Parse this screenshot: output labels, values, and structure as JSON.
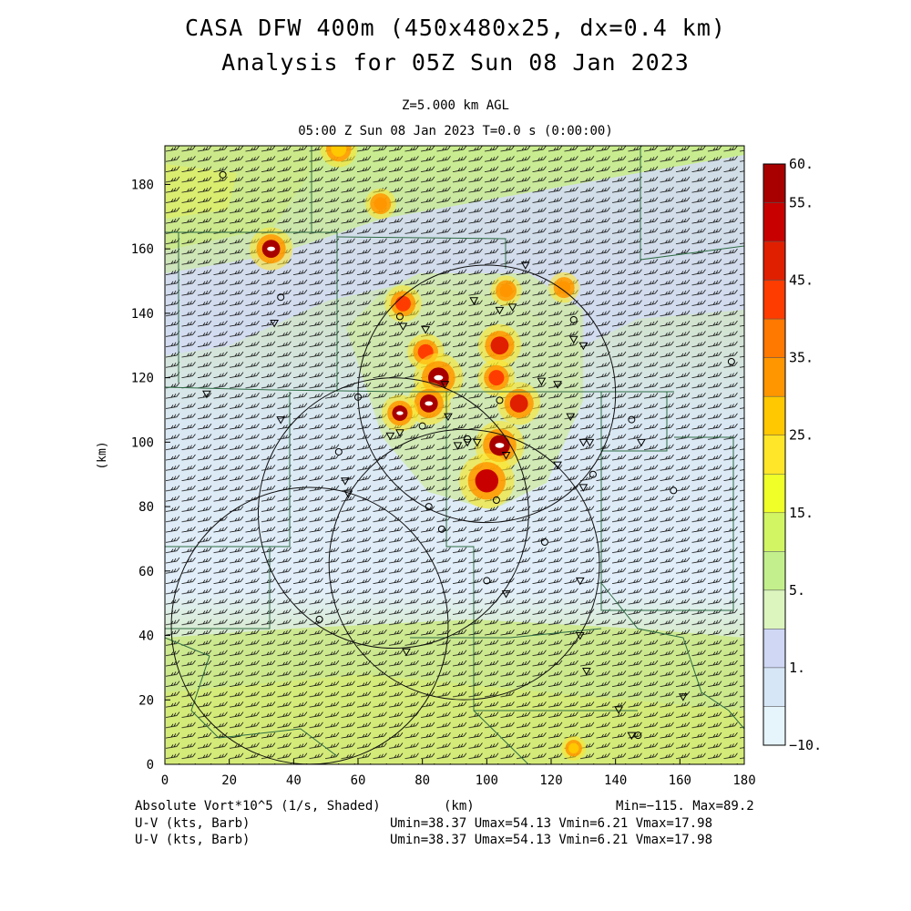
{
  "header": {
    "title_line1": "CASA DFW 400m (450x480x25, dx=0.4 km)",
    "title_line2": "Analysis for 05Z Sun 08 Jan 2023",
    "level": "Z=5.000 km AGL",
    "time": "05:00 Z Sun 08 Jan 2023   T=0.0 s (0:00:00)"
  },
  "axes": {
    "x_unit": "(km)",
    "y_unit": "(km)",
    "x_ticks": [
      "0",
      "20",
      "40",
      "60",
      "80",
      "100",
      "120",
      "140",
      "160",
      "180"
    ],
    "y_ticks": [
      "0",
      "20",
      "40",
      "60",
      "80",
      "100",
      "120",
      "140",
      "160",
      "180"
    ],
    "x_range": [
      0,
      180
    ],
    "y_range": [
      0,
      192
    ]
  },
  "colorbar": {
    "labels": [
      "60.",
      "55.",
      "45.",
      "35.",
      "25.",
      "15.",
      "5.",
      "1.",
      "−10."
    ],
    "colors": [
      "#a80000",
      "#c80000",
      "#e01e00",
      "#ff3c00",
      "#ff7800",
      "#ff9600",
      "#ffc800",
      "#ffe628",
      "#f0ff28",
      "#d2f564",
      "#c3f08c",
      "#dcf5be",
      "#cfd7f5",
      "#d7e6f7",
      "#e6f5fb"
    ]
  },
  "footer": {
    "field_label": "Absolute Vort*10^5 (1/s, Shaded)",
    "x_unit": "(km)",
    "minmax": "Min=−115. Max=89.2",
    "wind_label_1": "U-V (kts, Barb)",
    "wind_stats_1": "Umin=38.37 Umax=54.13 Vmin=6.21 Vmax=17.98",
    "wind_label_2": "U-V (kts, Barb)",
    "wind_stats_2": "Umin=38.37 Umax=54.13 Vmin=6.21 Vmax=17.98"
  },
  "map": {
    "background_colors": {
      "green": "#c8ec8c",
      "lavender": "#d2daf5",
      "pale_blue": "#e4f2fa",
      "yellow_green": "#e8f45a"
    },
    "radar_ranges": [
      {
        "center_km": [
          100,
          115
        ],
        "radius_km": 40
      },
      {
        "center_km": [
          71,
          78
        ],
        "radius_km": 42
      },
      {
        "center_km": [
          45,
          43
        ],
        "radius_km": 43
      },
      {
        "center_km": [
          93,
          62
        ],
        "radius_km": 42
      }
    ],
    "stations_triangle": [
      [
        13,
        115
      ],
      [
        34,
        137
      ],
      [
        36,
        107
      ],
      [
        56,
        88
      ],
      [
        57,
        84
      ],
      [
        74,
        136
      ],
      [
        81,
        135
      ],
      [
        87,
        118
      ],
      [
        88,
        108
      ],
      [
        91,
        99
      ],
      [
        94,
        100
      ],
      [
        97,
        100
      ],
      [
        96,
        144
      ],
      [
        104,
        141
      ],
      [
        106,
        96
      ],
      [
        108,
        142
      ],
      [
        112,
        155
      ],
      [
        117,
        119
      ],
      [
        122,
        93
      ],
      [
        122,
        118
      ],
      [
        126,
        108
      ],
      [
        127,
        132
      ],
      [
        129,
        40
      ],
      [
        130,
        130
      ],
      [
        130,
        100
      ],
      [
        132,
        100
      ],
      [
        130,
        86
      ],
      [
        131,
        29
      ],
      [
        141,
        17
      ],
      [
        145,
        9
      ],
      [
        148,
        100
      ],
      [
        161,
        21
      ],
      [
        73,
        103
      ],
      [
        70,
        102
      ],
      [
        129,
        57
      ],
      [
        106,
        53
      ],
      [
        75,
        35
      ]
    ],
    "stations_circle": [
      [
        18,
        183
      ],
      [
        36,
        145
      ],
      [
        54,
        97
      ],
      [
        60,
        114
      ],
      [
        48,
        45
      ],
      [
        73,
        139
      ],
      [
        80,
        105
      ],
      [
        82,
        80
      ],
      [
        86,
        73
      ],
      [
        94,
        101
      ],
      [
        100,
        57
      ],
      [
        103,
        82
      ],
      [
        118,
        69
      ],
      [
        127,
        138
      ],
      [
        133,
        90
      ],
      [
        145,
        107
      ],
      [
        158,
        85
      ],
      [
        176,
        125
      ],
      [
        147,
        9
      ],
      [
        104,
        113
      ]
    ],
    "vorticity_cells": [
      {
        "center_km": [
          33,
          160
        ],
        "radius_km": 3.5,
        "value": 60
      },
      {
        "center_km": [
          67,
          174
        ],
        "radius_km": 2.5,
        "value": 30
      },
      {
        "center_km": [
          74,
          143
        ],
        "radius_km": 3,
        "value": 40
      },
      {
        "center_km": [
          81,
          128
        ],
        "radius_km": 3,
        "value": 40
      },
      {
        "center_km": [
          85,
          120
        ],
        "radius_km": 4,
        "value": 60
      },
      {
        "center_km": [
          82,
          112
        ],
        "radius_km": 3.5,
        "value": 60
      },
      {
        "center_km": [
          73,
          109
        ],
        "radius_km": 3,
        "value": 60
      },
      {
        "center_km": [
          104,
          130
        ],
        "radius_km": 3.5,
        "value": 45
      },
      {
        "center_km": [
          103,
          120
        ],
        "radius_km": 3,
        "value": 40
      },
      {
        "center_km": [
          110,
          112
        ],
        "radius_km": 3.5,
        "value": 45
      },
      {
        "center_km": [
          104,
          99
        ],
        "radius_km": 4,
        "value": 60
      },
      {
        "center_km": [
          100,
          88
        ],
        "radius_km": 4.5,
        "value": 55
      },
      {
        "center_km": [
          124,
          148
        ],
        "radius_km": 2.5,
        "value": 30
      },
      {
        "center_km": [
          106,
          147
        ],
        "radius_km": 2.5,
        "value": 30
      },
      {
        "center_km": [
          127,
          5
        ],
        "radius_km": 2,
        "value": 25
      },
      {
        "center_km": [
          54,
          191
        ],
        "radius_km": 3,
        "value": 25
      }
    ]
  }
}
